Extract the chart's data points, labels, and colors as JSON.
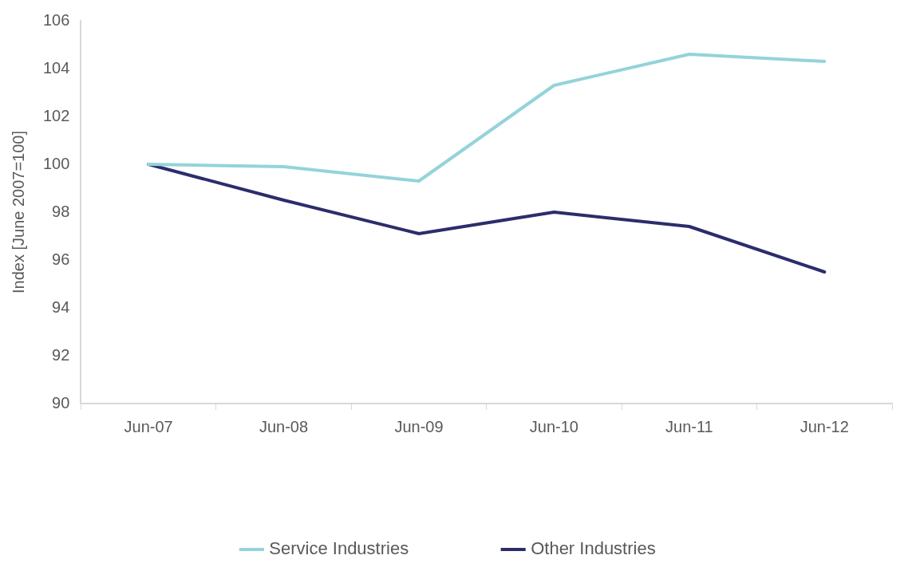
{
  "chart_data": {
    "type": "line",
    "ylabel": "Index [June 2007=100]",
    "categories": [
      "Jun-07",
      "Jun-08",
      "Jun-09",
      "Jun-10",
      "Jun-11",
      "Jun-12"
    ],
    "series": [
      {
        "name": "Service Industries",
        "color": "#94d3da",
        "values": [
          100,
          99.9,
          99.3,
          103.3,
          104.6,
          104.3
        ]
      },
      {
        "name": "Other Industries",
        "color": "#2b2d6b",
        "values": [
          100,
          98.5,
          97.1,
          98.0,
          97.4,
          95.5
        ]
      }
    ],
    "ylim": [
      90,
      106
    ],
    "yticks": [
      90,
      92,
      94,
      96,
      98,
      100,
      102,
      104,
      106
    ],
    "grid": false,
    "legend": "bottom",
    "marker": "none",
    "line_style": "solid"
  }
}
